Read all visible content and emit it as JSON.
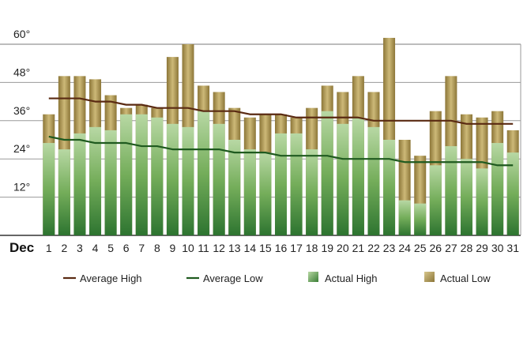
{
  "chart_data": {
    "type": "bar",
    "xlabel": "Dec",
    "ylabel": "",
    "ylim": [
      0,
      60
    ],
    "yticks": [
      "12°",
      "24°",
      "36°",
      "48°",
      "60°"
    ],
    "ytick_values": [
      12,
      24,
      36,
      48,
      60
    ],
    "categories": [
      "1",
      "2",
      "3",
      "4",
      "5",
      "6",
      "7",
      "8",
      "9",
      "10",
      "11",
      "12",
      "13",
      "14",
      "15",
      "16",
      "17",
      "18",
      "19",
      "20",
      "21",
      "22",
      "23",
      "24",
      "25",
      "26",
      "27",
      "28",
      "29",
      "30",
      "31"
    ],
    "series": [
      {
        "name": "Average High",
        "kind": "line",
        "color": "#5a2a12",
        "values": [
          43,
          43,
          43,
          42,
          42,
          41,
          41,
          40,
          40,
          40,
          39,
          39,
          39,
          38,
          38,
          38,
          37,
          37,
          37,
          37,
          37,
          36,
          36,
          36,
          36,
          36,
          36,
          35,
          35,
          35,
          35
        ]
      },
      {
        "name": "Average Low",
        "kind": "line",
        "color": "#1f5a1f",
        "values": [
          31,
          30,
          30,
          29,
          29,
          29,
          28,
          28,
          27,
          27,
          27,
          27,
          26,
          26,
          26,
          25,
          25,
          25,
          25,
          24,
          24,
          24,
          24,
          23,
          23,
          23,
          23,
          23,
          23,
          22,
          22
        ]
      },
      {
        "name": "Actual High",
        "kind": "bar",
        "color": "#5e9e4a",
        "values": [
          29,
          27,
          32,
          34,
          33,
          38,
          38,
          37,
          35,
          34,
          39,
          35,
          30,
          27,
          26,
          32,
          32,
          27,
          39,
          35,
          37,
          34,
          30,
          11,
          10,
          22,
          28,
          24,
          21,
          29,
          26
        ]
      },
      {
        "name": "Actual Low",
        "kind": "bar",
        "color": "#a89452",
        "values": [
          38,
          50,
          50,
          49,
          44,
          40,
          41,
          40,
          56,
          60,
          47,
          45,
          40,
          37,
          38,
          38,
          37,
          40,
          47,
          45,
          50,
          45,
          62,
          30,
          25,
          39,
          50,
          38,
          37,
          39,
          33
        ]
      }
    ],
    "grid": true,
    "legend_position": "bottom"
  }
}
